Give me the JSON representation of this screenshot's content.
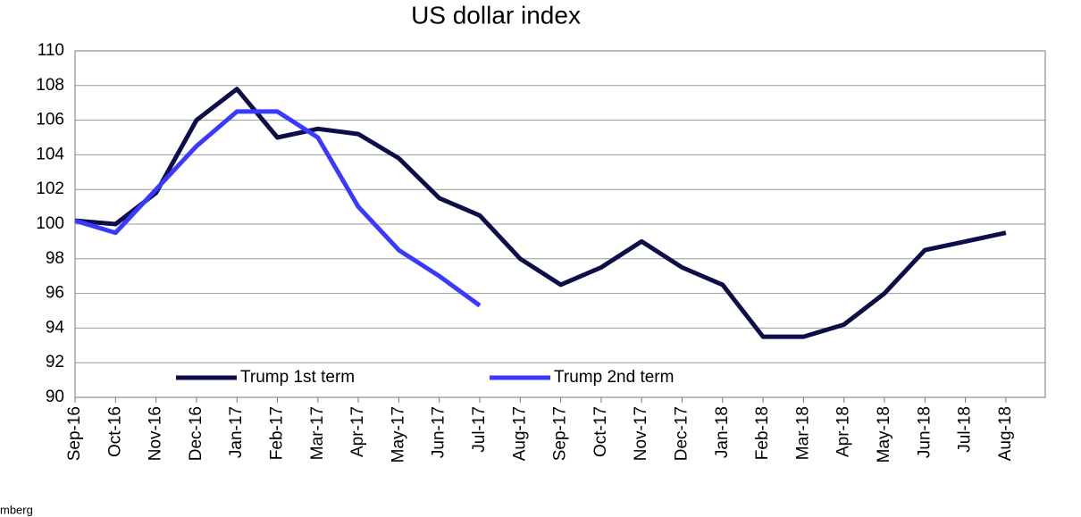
{
  "chart_data": {
    "type": "line",
    "title": "US dollar index",
    "categories": [
      "Sep-16",
      "Oct-16",
      "Nov-16",
      "Dec-16",
      "Jan-17",
      "Feb-17",
      "Mar-17",
      "Apr-17",
      "May-17",
      "Jun-17",
      "Jul-17",
      "Aug-17",
      "Sep-17",
      "Oct-17",
      "Nov-17",
      "Dec-17",
      "Jan-18",
      "Feb-18",
      "Mar-18",
      "Apr-18",
      "May-18",
      "Jun-18",
      "Jul-18",
      "Aug-18"
    ],
    "series": [
      {
        "name": "Trump 1st term",
        "color": "#0d0d4a",
        "values": [
          100.2,
          100.0,
          101.8,
          106.0,
          107.8,
          105.0,
          105.5,
          105.2,
          103.8,
          101.5,
          100.5,
          98.0,
          96.5,
          97.5,
          99.0,
          97.5,
          96.5,
          93.5,
          93.5,
          94.2,
          96.0,
          98.5,
          99.0,
          99.5
        ]
      },
      {
        "name": "Trump 2nd term",
        "color": "#3a3aff",
        "values": [
          100.2,
          99.5,
          102.0,
          104.5,
          106.5,
          106.5,
          105.0,
          101.0,
          98.5,
          97.0,
          95.3,
          null,
          null,
          null,
          null,
          null,
          null,
          null,
          null,
          null,
          null,
          null,
          null,
          null
        ]
      }
    ],
    "ylim": [
      90,
      110
    ],
    "yticks": [
      90,
      92,
      94,
      96,
      98,
      100,
      102,
      104,
      106,
      108,
      110
    ],
    "grid": true,
    "legend": "bottom",
    "source": "mberg"
  }
}
